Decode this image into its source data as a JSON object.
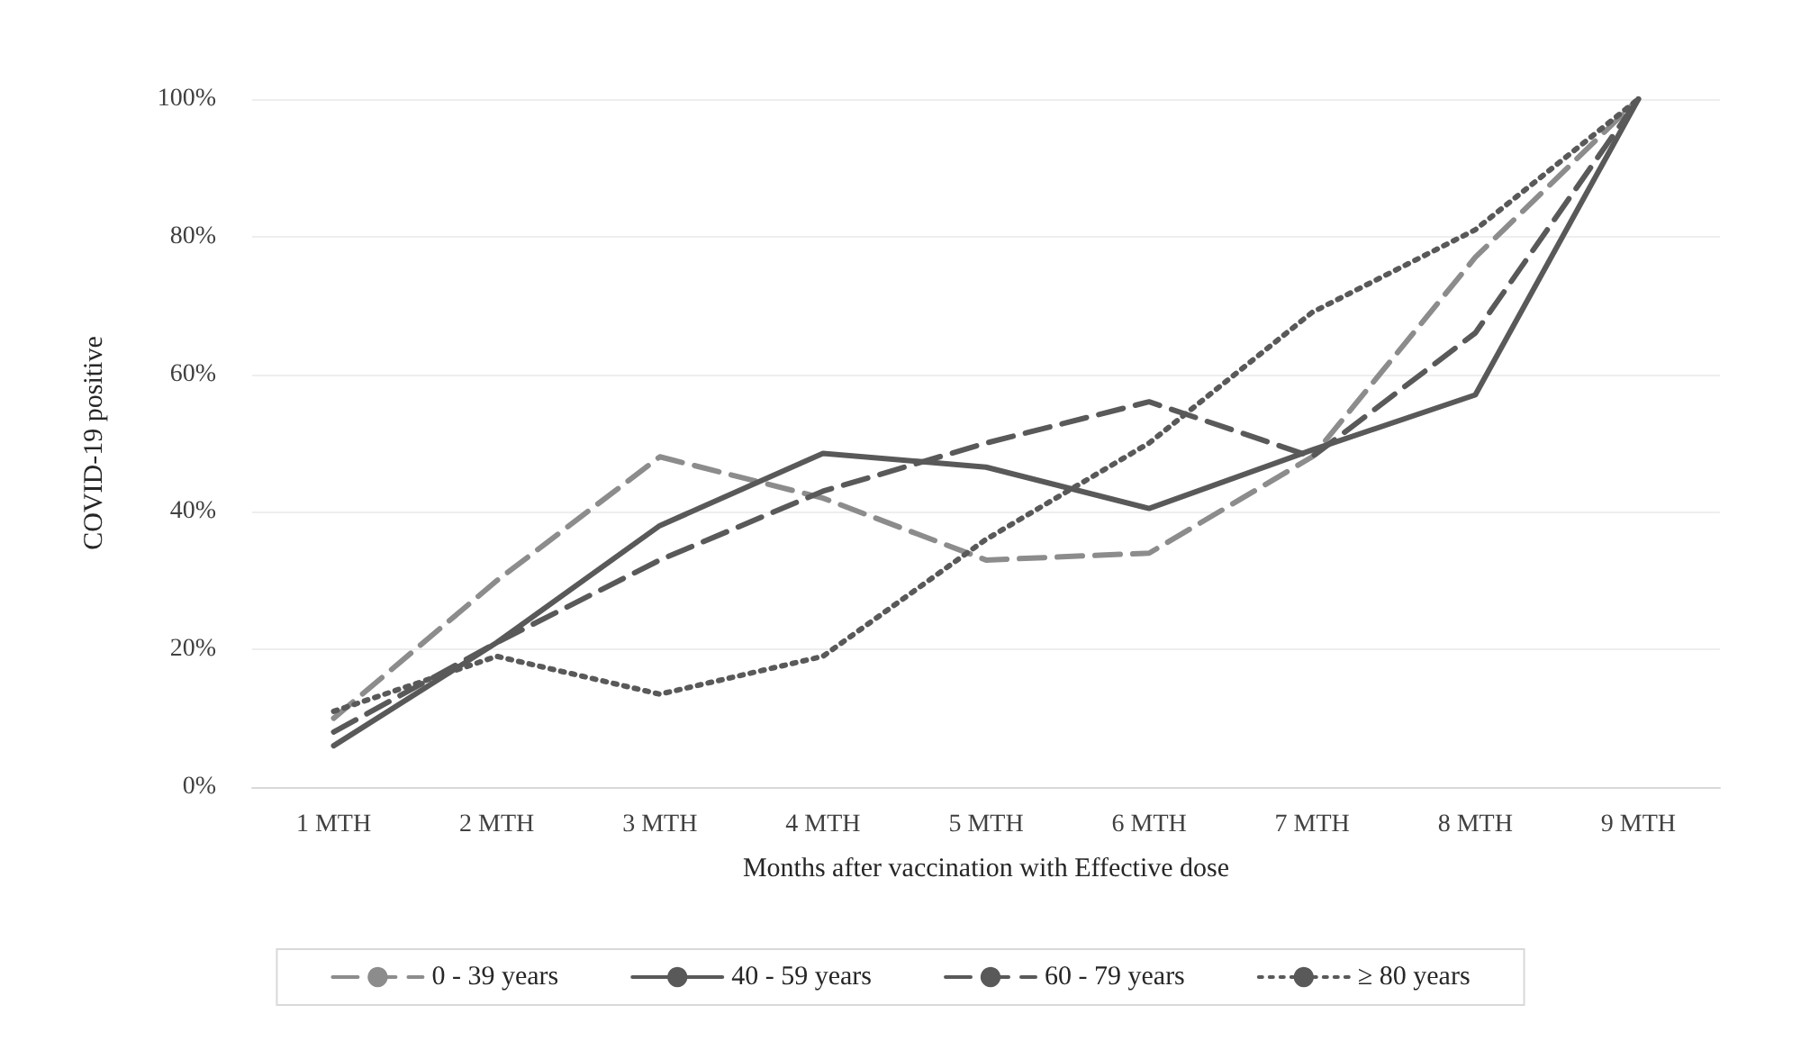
{
  "chart_data": {
    "type": "line",
    "xlabel": "Months after vaccination with Effective dose",
    "ylabel": "COVID-19 positive",
    "categories": [
      "1 MTH",
      "2 MTH",
      "3 MTH",
      "4 MTH",
      "5 MTH",
      "6 MTH",
      "7 MTH",
      "8 MTH",
      "9 MTH"
    ],
    "series": [
      {
        "name": "0 - 39 years",
        "color": "#8c8c8c",
        "line_style": "dashed",
        "values": [
          10,
          30,
          48,
          42,
          33,
          34,
          48,
          77,
          100
        ]
      },
      {
        "name": "40 - 59 years",
        "color": "#595959",
        "line_style": "solid",
        "values": [
          6,
          21,
          38,
          48.5,
          46.5,
          40.5,
          49,
          57,
          100
        ]
      },
      {
        "name": "60 - 79 years",
        "color": "#595959",
        "line_style": "dashed",
        "values": [
          8,
          21,
          33,
          43,
          50,
          56,
          48,
          66,
          100
        ]
      },
      {
        "name": "≥ 80 years",
        "color": "#595959",
        "line_style": "dotted",
        "values": [
          11,
          19,
          13.5,
          19,
          36,
          50,
          69,
          81,
          100
        ]
      }
    ],
    "ylim": [
      0,
      100
    ],
    "yticks": [
      {
        "value": 0,
        "label": "0%"
      },
      {
        "value": 20,
        "label": "20%"
      },
      {
        "value": 40,
        "label": "40%"
      },
      {
        "value": 60,
        "label": "60%"
      },
      {
        "value": 80,
        "label": "80%"
      },
      {
        "value": 100,
        "label": "100%"
      }
    ],
    "grid": "y",
    "legend": "bottom",
    "marker": "none"
  }
}
